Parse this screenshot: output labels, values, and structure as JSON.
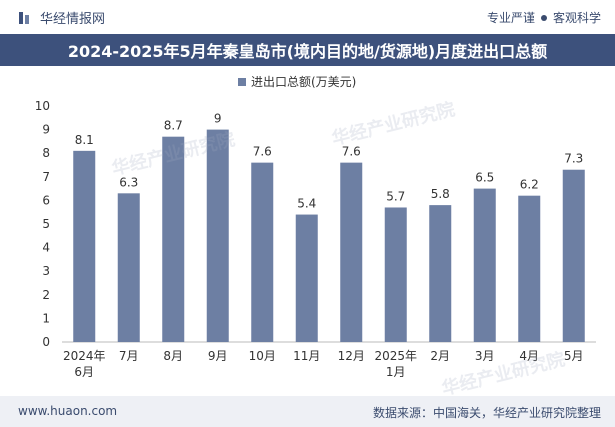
{
  "header": {
    "brand": "华经情报网",
    "slogan_a": "专业严谨",
    "slogan_b": "客观科学"
  },
  "title": "2024-2025年5月年秦皇岛市(境内目的地/货源地)月度进出口总额",
  "footer": {
    "website": "www.huaon.com",
    "source": "数据来源：中国海关，华经产业研究院整理"
  },
  "watermark": "华经产业研究院",
  "colors": {
    "bar": "#6d7fa3",
    "title_bg": "#3d517c",
    "text": "#333333"
  },
  "chart_data": {
    "type": "bar",
    "legend": "进出口总额(万美元)",
    "categories": [
      "2024年\n6月",
      "7月",
      "8月",
      "9月",
      "10月",
      "11月",
      "12月",
      "2025年\n1月",
      "2月",
      "3月",
      "4月",
      "5月"
    ],
    "values": [
      8.1,
      6.3,
      8.7,
      9,
      7.6,
      5.4,
      7.6,
      5.7,
      5.8,
      6.5,
      6.2,
      7.3
    ],
    "value_labels": [
      "8.1",
      "6.3",
      "8.7",
      "9",
      "7.6",
      "5.4",
      "7.6",
      "5.7",
      "5.8",
      "6.5",
      "6.2",
      "7.3"
    ],
    "ylim": [
      0,
      10
    ],
    "yticks": [
      "0",
      "1",
      "2",
      "3",
      "4",
      "5",
      "6",
      "7",
      "8",
      "9",
      "10"
    ]
  }
}
